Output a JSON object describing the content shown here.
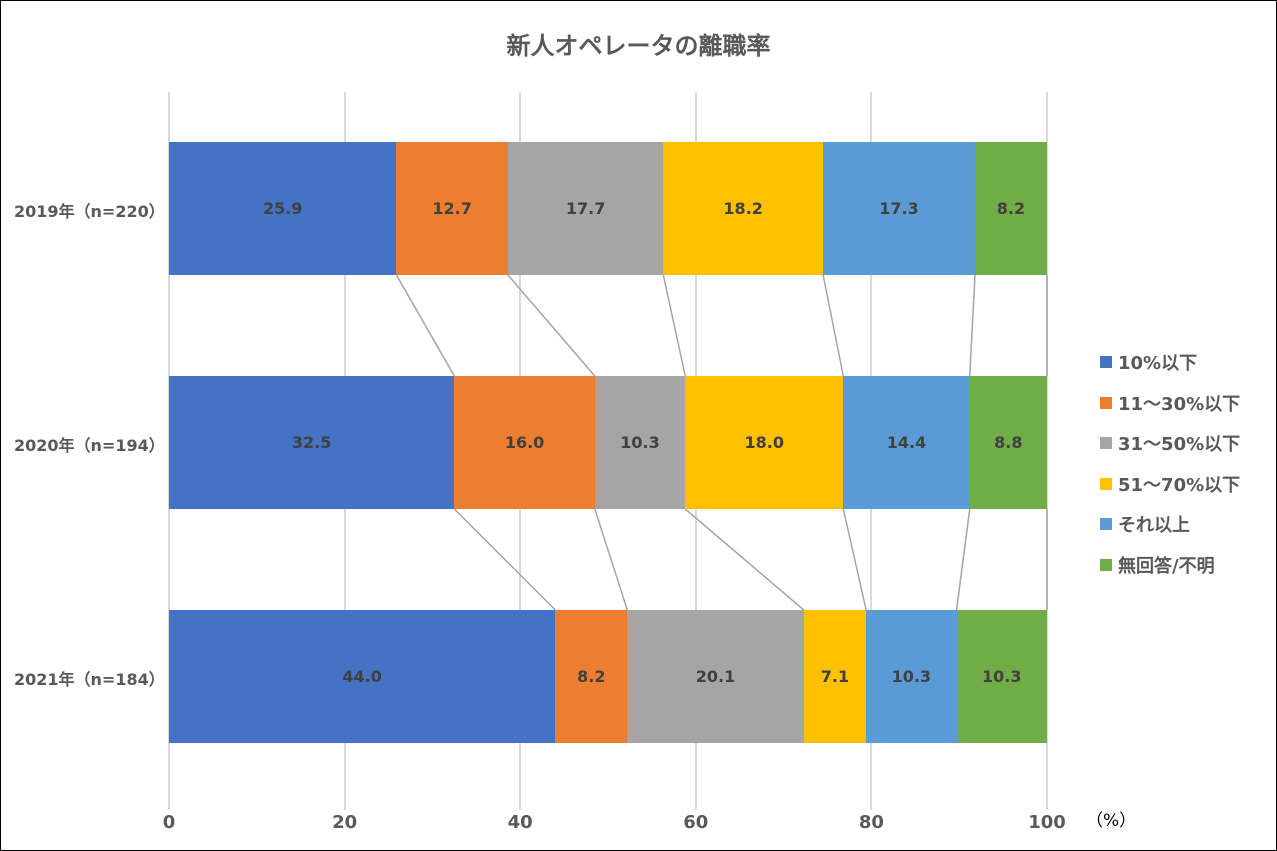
{
  "chart_data": {
    "type": "bar",
    "orientation": "horizontal",
    "stacked": "100%",
    "title": "新人オペレータの離職率",
    "xlabel": "",
    "ylabel": "",
    "unit_label": "（%）",
    "xlim": [
      0,
      100
    ],
    "xticks": [
      "0",
      "20",
      "40",
      "60",
      "80",
      "100"
    ],
    "grid": true,
    "legend_position": "right",
    "series_lines": true,
    "categories": [
      "2019年（n=220）",
      "2020年（n=194）",
      "2021年（n=184）"
    ],
    "series": [
      {
        "name": "10%以下",
        "color": "#4472C4",
        "values": [
          25.9,
          32.5,
          44.0
        ],
        "labels": [
          "25.9",
          "32.5",
          "44.0"
        ]
      },
      {
        "name": "11～30%以下",
        "color": "#ED7D31",
        "values": [
          12.7,
          16.0,
          8.2
        ],
        "labels": [
          "12.7",
          "16.0",
          "8.2"
        ]
      },
      {
        "name": "31～50%以下",
        "color": "#A5A5A5",
        "values": [
          17.7,
          10.3,
          20.1
        ],
        "labels": [
          "17.7",
          "10.3",
          "20.1"
        ]
      },
      {
        "name": "51～70%以下",
        "color": "#FFC000",
        "values": [
          18.2,
          18.0,
          7.1
        ],
        "labels": [
          "18.2",
          "18.0",
          "7.1"
        ]
      },
      {
        "name": "それ以上",
        "color": "#5B9BD5",
        "values": [
          17.3,
          14.4,
          10.3
        ],
        "labels": [
          "17.3",
          "14.4",
          "10.3"
        ]
      },
      {
        "name": "無回答/不明",
        "color": "#70AD47",
        "values": [
          8.2,
          8.8,
          10.3
        ],
        "labels": [
          "8.2",
          "8.8",
          "10.3"
        ]
      }
    ]
  }
}
